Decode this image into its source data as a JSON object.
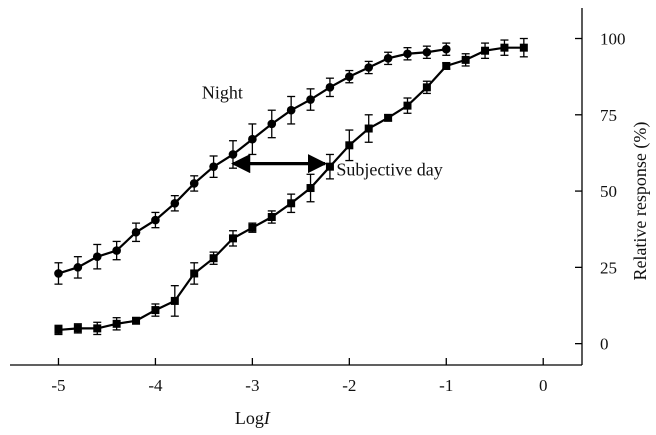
{
  "chart_data": {
    "type": "line",
    "title": "",
    "xlabel_prefix": "Log",
    "xlabel_var": "I",
    "ylabel": "Relative response (%)",
    "xlim": [
      -5.5,
      0.4
    ],
    "ylim": [
      -7,
      110
    ],
    "x_ticks": [
      -5,
      -4,
      -3,
      -2,
      -1,
      0
    ],
    "x_tick_labels": [
      "-5",
      "-4",
      "-3",
      "-2",
      "-1",
      "0"
    ],
    "y_ticks": [
      0,
      25,
      50,
      75,
      100
    ],
    "y_tick_labels": [
      "0",
      "25",
      "50",
      "75",
      "100"
    ],
    "y_axis_side": "right",
    "grid": false,
    "series": [
      {
        "name": "Night",
        "marker": "circle",
        "x": [
          -5.0,
          -4.8,
          -4.6,
          -4.4,
          -4.2,
          -4.0,
          -3.8,
          -3.6,
          -3.4,
          -3.2,
          -3.0,
          -2.8,
          -2.6,
          -2.4,
          -2.2,
          -2.0,
          -1.8,
          -1.6,
          -1.4,
          -1.2,
          -1.0
        ],
        "y": [
          23,
          25,
          28.5,
          30.5,
          36.5,
          40.5,
          46,
          52.5,
          58,
          62,
          67,
          72,
          76.5,
          80,
          84,
          87.5,
          90.5,
          93.5,
          95,
          95.5,
          96.5
        ],
        "err": [
          3.5,
          3.5,
          4,
          3,
          3,
          2.5,
          2.5,
          2.5,
          3.5,
          4.5,
          5,
          4.5,
          4.5,
          3.5,
          3,
          2,
          2,
          2,
          2,
          2,
          2
        ]
      },
      {
        "name": "Subjective day",
        "marker": "square",
        "x": [
          -5.0,
          -4.8,
          -4.6,
          -4.4,
          -4.2,
          -4.0,
          -3.8,
          -3.6,
          -3.4,
          -3.2,
          -3.0,
          -2.8,
          -2.6,
          -2.4,
          -2.2,
          -2.0,
          -1.8,
          -1.6,
          -1.4,
          -1.2,
          -1.0,
          -0.8,
          -0.6,
          -0.4,
          -0.2
        ],
        "y": [
          4.5,
          5,
          5,
          6.5,
          7.5,
          11,
          14,
          23,
          28,
          34.5,
          38,
          41.5,
          46,
          51,
          58,
          65,
          70.5,
          74,
          78,
          84,
          91,
          93,
          96,
          97,
          97
        ],
        "err": [
          1.5,
          1.5,
          2,
          2,
          1,
          2,
          5,
          3.5,
          2,
          2.5,
          1.5,
          2,
          3,
          4.5,
          4,
          5,
          4.5,
          1,
          2.5,
          2,
          1,
          2,
          2.5,
          2.5,
          3
        ]
      }
    ],
    "annotations": {
      "night_label": "Night",
      "day_label": "Subjective day",
      "night_label_pos": {
        "x": -3.0,
        "y": 82
      },
      "day_label_pos": {
        "x": -2.0,
        "y": 57
      },
      "arrow": {
        "x_start": -3.2,
        "x_end": -2.25,
        "y": 59
      }
    }
  }
}
